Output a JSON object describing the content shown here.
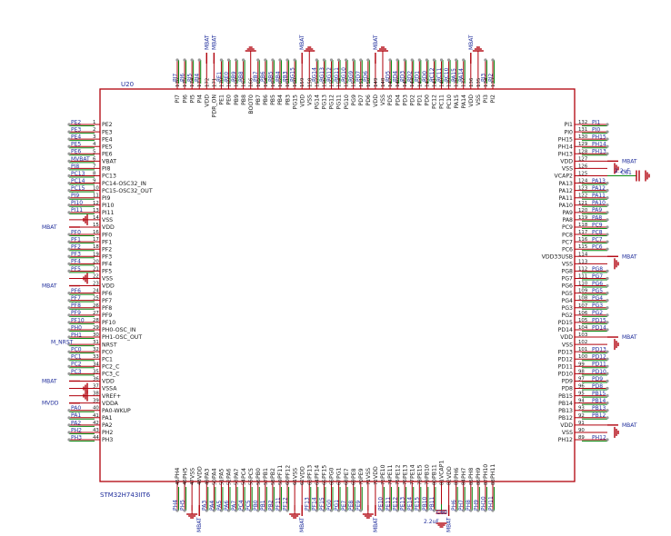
{
  "chip": {
    "ref": "U20",
    "part": "STM32H743IIT6"
  },
  "left_pins": [
    {
      "n": "1",
      "name": "PE2",
      "net": "PE2"
    },
    {
      "n": "2",
      "name": "PE3",
      "net": "PE3"
    },
    {
      "n": "3",
      "name": "PE4",
      "net": "PE4"
    },
    {
      "n": "4",
      "name": "PE5",
      "net": "PE5"
    },
    {
      "n": "5",
      "name": "PE6",
      "net": "PE6"
    },
    {
      "n": "6",
      "name": "VBAT",
      "net": "MVBAT"
    },
    {
      "n": "7",
      "name": "PI8",
      "net": "PI8"
    },
    {
      "n": "8",
      "name": "PC13",
      "net": "PC13"
    },
    {
      "n": "9",
      "name": "PC14-OSC32_IN",
      "net": "PC14"
    },
    {
      "n": "10",
      "name": "PC15-OSC32_OUT",
      "net": "PC15"
    },
    {
      "n": "11",
      "name": "PI9",
      "net": "PI9"
    },
    {
      "n": "12",
      "name": "PI10",
      "net": "PI10"
    },
    {
      "n": "13",
      "name": "PI11",
      "net": "PI11"
    },
    {
      "n": "14",
      "name": "VSS",
      "net": "gnd"
    },
    {
      "n": "15",
      "name": "VDD",
      "net": "MBAT"
    },
    {
      "n": "16",
      "name": "PF0",
      "net": "PF0"
    },
    {
      "n": "17",
      "name": "PF1",
      "net": "PF1"
    },
    {
      "n": "18",
      "name": "PF2",
      "net": "PF2"
    },
    {
      "n": "19",
      "name": "PF3",
      "net": "PF3"
    },
    {
      "n": "20",
      "name": "PF4",
      "net": "PF4"
    },
    {
      "n": "21",
      "name": "PF5",
      "net": "PF5"
    },
    {
      "n": "22",
      "name": "VSS",
      "net": "gnd"
    },
    {
      "n": "23",
      "name": "VDD",
      "net": "MBAT"
    },
    {
      "n": "24",
      "name": "PF6",
      "net": "PF6"
    },
    {
      "n": "25",
      "name": "PF7",
      "net": "PF7"
    },
    {
      "n": "26",
      "name": "PF8",
      "net": "PF8"
    },
    {
      "n": "27",
      "name": "PF9",
      "net": "PF9"
    },
    {
      "n": "28",
      "name": "PF10",
      "net": "PF10"
    },
    {
      "n": "29",
      "name": "PH0-OSC_IN",
      "net": "PH0"
    },
    {
      "n": "30",
      "name": "PH1-OSC_OUT",
      "net": "PH1"
    },
    {
      "n": "31",
      "name": "NRST",
      "net": "M_NRST"
    },
    {
      "n": "32",
      "name": "PC0",
      "net": "PC0"
    },
    {
      "n": "33",
      "name": "PC1",
      "net": "PC1"
    },
    {
      "n": "34",
      "name": "PC2_C",
      "net": "PC2"
    },
    {
      "n": "35",
      "name": "PC3_C",
      "net": "PC3"
    },
    {
      "n": "36",
      "name": "VDD",
      "net": "MBAT"
    },
    {
      "n": "37",
      "name": "VSSA",
      "net": "gnd"
    },
    {
      "n": "38",
      "name": "VREF+",
      "net": "gnd"
    },
    {
      "n": "39",
      "name": "VDDA",
      "net": "MVDD"
    },
    {
      "n": "40",
      "name": "PA0-WKUP",
      "net": "PA0"
    },
    {
      "n": "41",
      "name": "PA1",
      "net": "PA1"
    },
    {
      "n": "42",
      "name": "PA2",
      "net": "PA2"
    },
    {
      "n": "43",
      "name": "PH2",
      "net": "PH2"
    },
    {
      "n": "44",
      "name": "PH3",
      "net": "PH3"
    }
  ],
  "right_pins": [
    {
      "n": "132",
      "name": "PI1",
      "net": "PI1"
    },
    {
      "n": "131",
      "name": "PI0",
      "net": "PI0"
    },
    {
      "n": "130",
      "name": "PH15",
      "net": "PH15"
    },
    {
      "n": "129",
      "name": "PH14",
      "net": "PH14"
    },
    {
      "n": "128",
      "name": "PH13",
      "net": "PH13"
    },
    {
      "n": "127",
      "name": "VDD",
      "net": "MBAT"
    },
    {
      "n": "126",
      "name": "VSS",
      "net": "gnd"
    },
    {
      "n": "125",
      "name": "VCAP2",
      "net": "C61"
    },
    {
      "n": "124",
      "name": "PA13",
      "net": "PA13"
    },
    {
      "n": "123",
      "name": "PA12",
      "net": "PA12"
    },
    {
      "n": "122",
      "name": "PA11",
      "net": "PA11"
    },
    {
      "n": "121",
      "name": "PA10",
      "net": "PA10"
    },
    {
      "n": "120",
      "name": "PA9",
      "net": "PA9"
    },
    {
      "n": "119",
      "name": "PA8",
      "net": "PA8"
    },
    {
      "n": "118",
      "name": "PC9",
      "net": "PC9"
    },
    {
      "n": "117",
      "name": "PC8",
      "net": "PC8"
    },
    {
      "n": "116",
      "name": "PC7",
      "net": "PC7"
    },
    {
      "n": "115",
      "name": "PC6",
      "net": "PC6"
    },
    {
      "n": "114",
      "name": "VDD33USB",
      "net": "MBAT"
    },
    {
      "n": "113",
      "name": "VSS",
      "net": "gnd"
    },
    {
      "n": "112",
      "name": "PG8",
      "net": "PG8"
    },
    {
      "n": "111",
      "name": "PG7",
      "net": "PG7"
    },
    {
      "n": "110",
      "name": "PG6",
      "net": "PG6"
    },
    {
      "n": "109",
      "name": "PG5",
      "net": "PG5"
    },
    {
      "n": "108",
      "name": "PG4",
      "net": "PG4"
    },
    {
      "n": "107",
      "name": "PG3",
      "net": "PG3"
    },
    {
      "n": "106",
      "name": "PG2",
      "net": "PG2"
    },
    {
      "n": "105",
      "name": "PD15",
      "net": "PD15"
    },
    {
      "n": "104",
      "name": "PD14",
      "net": "PD14"
    },
    {
      "n": "103",
      "name": "VDD",
      "net": "MBAT"
    },
    {
      "n": "102",
      "name": "VSS",
      "net": "gnd"
    },
    {
      "n": "101",
      "name": "PD13",
      "net": "PD13"
    },
    {
      "n": "100",
      "name": "PD12",
      "net": "PD12"
    },
    {
      "n": "99",
      "name": "PD11",
      "net": "PD11"
    },
    {
      "n": "98",
      "name": "PD10",
      "net": "PD10"
    },
    {
      "n": "97",
      "name": "PD9",
      "net": "PD9"
    },
    {
      "n": "96",
      "name": "PD8",
      "net": "PD8"
    },
    {
      "n": "95",
      "name": "PB15",
      "net": "PB15"
    },
    {
      "n": "94",
      "name": "PB14",
      "net": "PB14"
    },
    {
      "n": "93",
      "name": "PB13",
      "net": "PB13"
    },
    {
      "n": "92",
      "name": "PB12",
      "net": "PB12"
    },
    {
      "n": "91",
      "name": "VDD",
      "net": "MBAT"
    },
    {
      "n": "90",
      "name": "VSS",
      "net": "gnd"
    },
    {
      "n": "89",
      "name": "PH12",
      "net": "PH12"
    }
  ],
  "top_pins": [
    {
      "n": "176",
      "name": "PI7",
      "net": "PI7"
    },
    {
      "n": "175",
      "name": "PI6",
      "net": "PI6"
    },
    {
      "n": "174",
      "name": "PI5",
      "net": "PI5"
    },
    {
      "n": "173",
      "name": "PI4",
      "net": "PI4"
    },
    {
      "n": "172",
      "name": "VDD",
      "net": "MBAT"
    },
    {
      "n": "171",
      "name": "PDR_ON",
      "net": "MBAT"
    },
    {
      "n": "170",
      "name": "PE1",
      "net": "PE1"
    },
    {
      "n": "169",
      "name": "PE0",
      "net": "PE0"
    },
    {
      "n": "168",
      "name": "PB9",
      "net": "PB9"
    },
    {
      "n": "167",
      "name": "PB8",
      "net": "PB8"
    },
    {
      "n": "166",
      "name": "BOOT0",
      "net": "gnd"
    },
    {
      "n": "165",
      "name": "PB7",
      "net": "PB7"
    },
    {
      "n": "164",
      "name": "PB6",
      "net": "PB6"
    },
    {
      "n": "163",
      "name": "PB5",
      "net": "PB5"
    },
    {
      "n": "162",
      "name": "PB4",
      "net": "PB4"
    },
    {
      "n": "161",
      "name": "PB3",
      "net": "PB3"
    },
    {
      "n": "160",
      "name": "PG15",
      "net": "PG15"
    },
    {
      "n": "159",
      "name": "VDD",
      "net": "MBAT"
    },
    {
      "n": "158",
      "name": "VSS",
      "net": "gnd"
    },
    {
      "n": "157",
      "name": "PG14",
      "net": "PG14"
    },
    {
      "n": "156",
      "name": "PG13",
      "net": "PG13"
    },
    {
      "n": "155",
      "name": "PG12",
      "net": "PG12"
    },
    {
      "n": "154",
      "name": "PG11",
      "net": "PG11"
    },
    {
      "n": "153",
      "name": "PG10",
      "net": "PG10"
    },
    {
      "n": "152",
      "name": "PG9",
      "net": "PG9"
    },
    {
      "n": "151",
      "name": "PD7",
      "net": "PD7"
    },
    {
      "n": "150",
      "name": "PD6",
      "net": "PD6"
    },
    {
      "n": "149",
      "name": "VDD",
      "net": "MBAT"
    },
    {
      "n": "148",
      "name": "VSS",
      "net": "gnd"
    },
    {
      "n": "147",
      "name": "PD5",
      "net": "PD5"
    },
    {
      "n": "146",
      "name": "PD4",
      "net": "PD4"
    },
    {
      "n": "145",
      "name": "PD3",
      "net": "PD3"
    },
    {
      "n": "144",
      "name": "PD2",
      "net": "PD2"
    },
    {
      "n": "143",
      "name": "PD1",
      "net": "PD1"
    },
    {
      "n": "142",
      "name": "PD0",
      "net": "PD0"
    },
    {
      "n": "141",
      "name": "PC12",
      "net": "PC12"
    },
    {
      "n": "140",
      "name": "PC11",
      "net": "PC11"
    },
    {
      "n": "139",
      "name": "PC10",
      "net": "PC10"
    },
    {
      "n": "138",
      "name": "PA15",
      "net": "PA15"
    },
    {
      "n": "137",
      "name": "PA14",
      "net": "PA14"
    },
    {
      "n": "136",
      "name": "VDD",
      "net": "MBAT"
    },
    {
      "n": "135",
      "name": "VSS",
      "net": "gnd"
    },
    {
      "n": "134",
      "name": "PI3",
      "net": "PI3"
    },
    {
      "n": "133",
      "name": "PI2",
      "net": "PI2"
    }
  ],
  "bottom_pins": [
    {
      "n": "45",
      "name": "PH4",
      "net": "PH4"
    },
    {
      "n": "46",
      "name": "PH5",
      "net": "PH5"
    },
    {
      "n": "47",
      "name": "VSS",
      "net": "gnd"
    },
    {
      "n": "48",
      "name": "VDD",
      "net": "MBAT"
    },
    {
      "n": "49",
      "name": "PA3",
      "net": "PA3"
    },
    {
      "n": "50",
      "name": "PA4",
      "net": "PA4"
    },
    {
      "n": "51",
      "name": "PA5",
      "net": "PA5"
    },
    {
      "n": "52",
      "name": "PA6",
      "net": "PA6"
    },
    {
      "n": "53",
      "name": "PA7",
      "net": "PA7"
    },
    {
      "n": "54",
      "name": "PC4",
      "net": "PC4"
    },
    {
      "n": "55",
      "name": "PC5",
      "net": "PC5"
    },
    {
      "n": "56",
      "name": "PB0",
      "net": "PB0"
    },
    {
      "n": "57",
      "name": "PB1",
      "net": "PB1"
    },
    {
      "n": "58",
      "name": "PB2",
      "net": "PB2"
    },
    {
      "n": "59",
      "name": "PF11",
      "net": "PF11"
    },
    {
      "n": "60",
      "name": "PF12",
      "net": "PF12"
    },
    {
      "n": "61",
      "name": "VSS",
      "net": "gnd"
    },
    {
      "n": "62",
      "name": "VDD",
      "net": "MBAT"
    },
    {
      "n": "63",
      "name": "PF13",
      "net": "PF13"
    },
    {
      "n": "64",
      "name": "PF14",
      "net": "PF14"
    },
    {
      "n": "65",
      "name": "PF15",
      "net": "PF15"
    },
    {
      "n": "66",
      "name": "PG0",
      "net": "PG0"
    },
    {
      "n": "67",
      "name": "PG1",
      "net": "PG1"
    },
    {
      "n": "68",
      "name": "PE7",
      "net": "PE7"
    },
    {
      "n": "69",
      "name": "PE8",
      "net": "PE8"
    },
    {
      "n": "70",
      "name": "PE9",
      "net": "PE9"
    },
    {
      "n": "71",
      "name": "VSS",
      "net": "gnd"
    },
    {
      "n": "72",
      "name": "VDD",
      "net": "MBAT"
    },
    {
      "n": "73",
      "name": "PE10",
      "net": "PE10"
    },
    {
      "n": "74",
      "name": "PE11",
      "net": "PE11"
    },
    {
      "n": "75",
      "name": "PE12",
      "net": "PE12"
    },
    {
      "n": "76",
      "name": "PE13",
      "net": "PE13"
    },
    {
      "n": "77",
      "name": "PE14",
      "net": "PE14"
    },
    {
      "n": "78",
      "name": "PE15",
      "net": "PE15"
    },
    {
      "n": "79",
      "name": "PB10",
      "net": "PB10"
    },
    {
      "n": "80",
      "name": "PB11",
      "net": "PB11"
    },
    {
      "n": "81",
      "name": "VCAP1",
      "net": "C60"
    },
    {
      "n": "82",
      "name": "VDD",
      "net": "MBAT"
    },
    {
      "n": "83",
      "name": "PH6",
      "net": "PH6"
    },
    {
      "n": "84",
      "name": "PH7",
      "net": "PH7"
    },
    {
      "n": "85",
      "name": "PH8",
      "net": "PH8"
    },
    {
      "n": "86",
      "name": "PH9",
      "net": "PH9"
    },
    {
      "n": "87",
      "name": "PH10",
      "net": "PH10"
    },
    {
      "n": "88",
      "name": "PH11",
      "net": "PH11"
    }
  ],
  "caps": {
    "c61": {
      "ref": "C61",
      "value": "2.2uF"
    },
    "c60": {
      "ref": "C60",
      "value": "2.2uF"
    }
  },
  "colors": {
    "body": "#b0000b",
    "wire": "#0a8a12",
    "label": "#1f2d9b"
  }
}
